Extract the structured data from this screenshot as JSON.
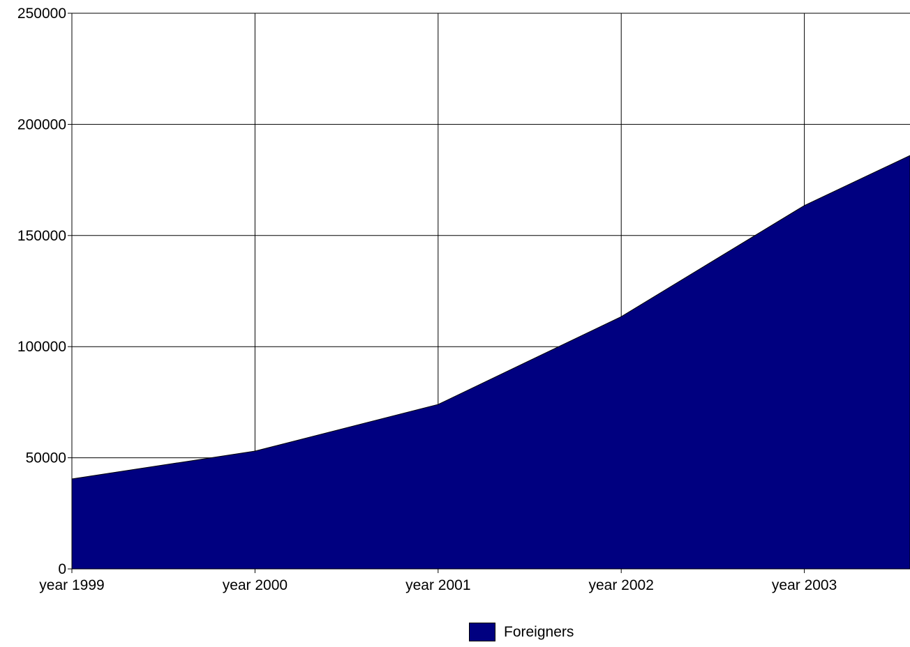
{
  "chart_data": {
    "type": "area",
    "categories": [
      "year 1999",
      "year 2000",
      "year 2001",
      "year 2002",
      "year 2003"
    ],
    "x_extent_categories": 5.6,
    "series": [
      {
        "name": "Foreigners",
        "values": [
          40500,
          53000,
          74000,
          113500,
          163500
        ],
        "end_value": 186000,
        "color": "#000080"
      }
    ],
    "ylim": [
      0,
      250000
    ],
    "yticks": [
      0,
      50000,
      100000,
      150000,
      200000,
      250000
    ],
    "grid": true,
    "legend_position": "bottom-center",
    "title": "",
    "xlabel": "",
    "ylabel": ""
  },
  "legend": {
    "label": "Foreigners",
    "color": "#000080"
  }
}
